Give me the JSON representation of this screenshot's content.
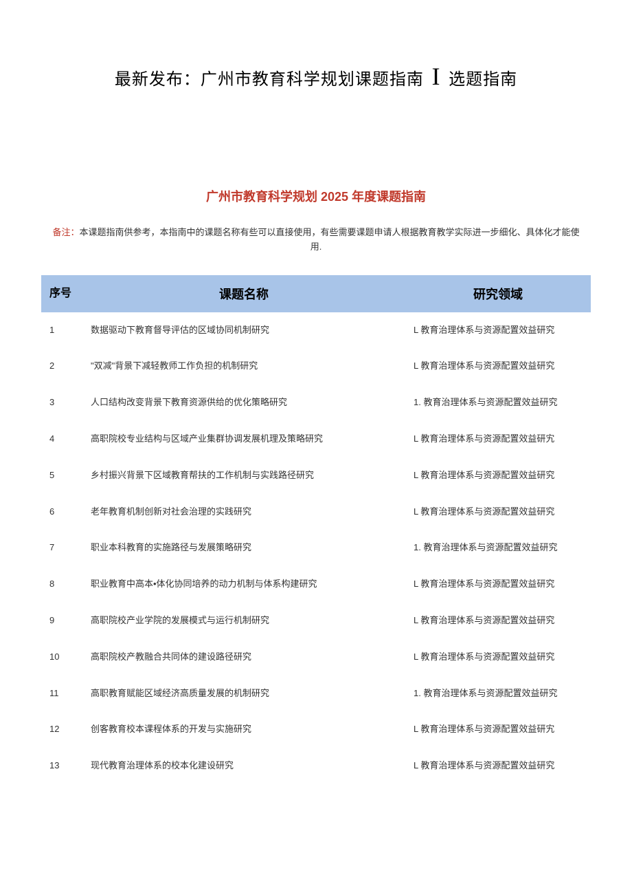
{
  "header": {
    "main_title_prefix": "最新发布：广州市教育科学规划课题指南",
    "main_title_separator": "I",
    "main_title_suffix": "选题指南",
    "sub_title": "广州市教育科学规划 2025 年度课题指南",
    "note_label": "备注：",
    "note_text": "本课题指南供参考，本指南中的课题名称有些可以直接使用，有些需要课题申请人根据教育教学实际进一步细化、具体化才能使用."
  },
  "table": {
    "columns": {
      "seq": "序号",
      "name": "课题名称",
      "domain": "研究领域"
    },
    "header_bg_color": "#a8c4e8",
    "rows": [
      {
        "seq": "1",
        "name": "数据驱动下教育督导评估的区域协同机制研究",
        "domain": "L 教育治理体系与资源配置效益研究"
      },
      {
        "seq": "2",
        "name": "\"双减\"背景下减轻教师工作负担的机制研究",
        "domain": "L 教育治理体系与资源配置效益研究"
      },
      {
        "seq": "3",
        "name": "人口结构改变背景下教育资源供给的优化策略研究",
        "domain": "1. 教育治理体系与资源配置效益研究"
      },
      {
        "seq": "4",
        "name": "高职院校专业结构与区域产业集群协调发展机理及策略研究",
        "domain": "L 教育治理体系与资源配置效益研宄"
      },
      {
        "seq": "5",
        "name": "乡村振兴背景下区域教育帮扶的工作机制与实践路径研究",
        "domain": "L 教育治理体系与资源配置效益研究"
      },
      {
        "seq": "6",
        "name": "老年教育机制创新对社会治理的实践研究",
        "domain": "L 教育治理体系与资源配置效益研究"
      },
      {
        "seq": "7",
        "name": "职业本科教育的实施路径与发展策略研究",
        "domain": "1. 教育治理体系与资源配置效益研究"
      },
      {
        "seq": "8",
        "name": "职业教育中高本•体化协同培养的动力机制与体系构建研究",
        "domain": "L 教育治理体系与资源配置效益研究"
      },
      {
        "seq": "9",
        "name": "高职院校产业学院的发展模式与运行机制研究",
        "domain": "L 教育治理体系与资源配置效益研究"
      },
      {
        "seq": "10",
        "name": "高职院校产教融合共同体的建设路径研究",
        "domain": "L 教育治理体系与资源配置效益研究"
      },
      {
        "seq": "11",
        "name": "高职教育赋能区域经济高质量发展的机制研究",
        "domain": "1. 教育治理体系与资源配置效益研究"
      },
      {
        "seq": "12",
        "name": "创客教育校本课程体系的开发与实施研究",
        "domain": "L 教育治理体系与资源配置效益研宄"
      },
      {
        "seq": "13",
        "name": "现代教育治理体系的校本化建设研究",
        "domain": "L 教育治理体系与资源配置效益研究"
      }
    ]
  },
  "colors": {
    "title_red": "#c0392b",
    "text_color": "#333333",
    "background": "#ffffff"
  }
}
